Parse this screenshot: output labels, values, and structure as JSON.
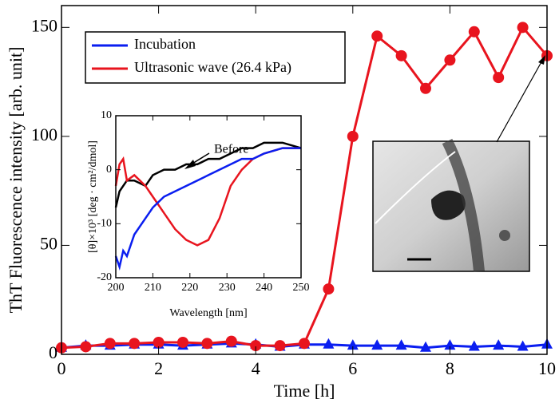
{
  "chart_data": [
    {
      "type": "line",
      "xlabel": "Time [h]",
      "ylabel": "ThT Fluorescence intensity [arb. unit]",
      "x": [
        0,
        0.5,
        1,
        1.5,
        2,
        2.5,
        3,
        3.5,
        4,
        4.5,
        5,
        5.5,
        6,
        6.5,
        7,
        7.5,
        8,
        8.5,
        9,
        9.5,
        10
      ],
      "series": [
        {
          "name": "Incubation",
          "color": "#0a1ef0",
          "marker": "triangle",
          "values": [
            3,
            4,
            4,
            4.5,
            4.5,
            4,
            4.5,
            5,
            4.5,
            3.5,
            4.5,
            4.5,
            4,
            4,
            4,
            3,
            4,
            3.5,
            4,
            3.5,
            4.5
          ]
        },
        {
          "name": "Ultrasonic wave (26.4 kPa)",
          "color": "#e8141e",
          "marker": "circle",
          "values": [
            3,
            3.5,
            5,
            5,
            5.5,
            5.5,
            5,
            6,
            4,
            4,
            5,
            30,
            100,
            146,
            137,
            122,
            135,
            148,
            127,
            150,
            137
          ]
        }
      ],
      "xlim": [
        0,
        10
      ],
      "xticks": [
        0,
        2,
        4,
        6,
        8,
        10
      ],
      "ylim": [
        0,
        160
      ],
      "yticks": [
        0,
        50,
        100,
        150
      ]
    },
    {
      "type": "line",
      "xlabel": "Wavelength [nm]",
      "ylabel": "[θ]×10³ [deg · cm²/dmol]",
      "annotation": "Before",
      "x": [
        200,
        201,
        202,
        203,
        205,
        208,
        210,
        213,
        216,
        219,
        222,
        225,
        228,
        231,
        234,
        237,
        240,
        245,
        250
      ],
      "series": [
        {
          "color": "#000000",
          "values": [
            -7,
            -4,
            -3,
            -2,
            -2,
            -3,
            -1,
            0,
            0,
            1,
            1,
            2,
            2,
            3,
            4,
            4,
            5,
            5,
            4
          ]
        },
        {
          "color": "#e8141e",
          "values": [
            -3,
            1,
            2,
            -2,
            -1,
            -3,
            -5,
            -8,
            -11,
            -13,
            -14,
            -13,
            -9,
            -3,
            0,
            2,
            3,
            4,
            4
          ]
        },
        {
          "color": "#0a1ef0",
          "values": [
            -16,
            -18,
            -15,
            -16,
            -12,
            -9,
            -7,
            -5,
            -4,
            -3,
            -2,
            -1,
            0,
            1,
            2,
            2,
            3,
            4,
            4
          ]
        }
      ],
      "xlim": [
        200,
        250
      ],
      "xticks": [
        200,
        210,
        220,
        230,
        240,
        250
      ],
      "ylim": [
        -20,
        10
      ],
      "yticks": [
        -20,
        -10,
        0,
        10
      ]
    }
  ]
}
